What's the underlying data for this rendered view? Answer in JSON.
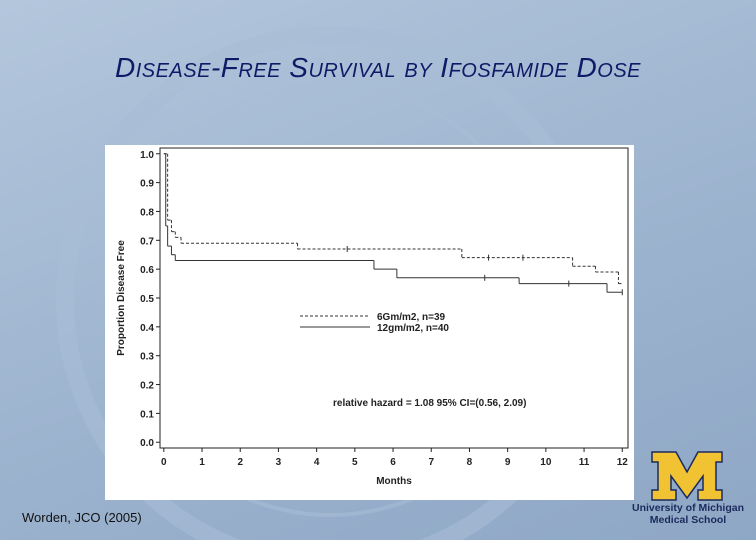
{
  "chart_data": {
    "type": "line",
    "step": true,
    "title": "Disease-Free Survival by Ifosfamide Dose",
    "x_label": "Months",
    "y_label": "Proportion Disease Free",
    "annotation": "relative hazard = 1.08 95% CI=(0.56, 2.09)",
    "xlim": [
      -0.1,
      12.15
    ],
    "ylim": [
      -0.02,
      1.02
    ],
    "xticks": [
      0,
      1,
      2,
      3,
      4,
      5,
      6,
      7,
      8,
      9,
      10,
      11,
      12
    ],
    "yticks": [
      {
        "value": 0,
        "label": "0.0"
      },
      {
        "value": 0.1,
        "label": "0.1"
      },
      {
        "value": 0.2,
        "label": "0.2"
      },
      {
        "value": 0.3,
        "label": "0.3"
      },
      {
        "value": 0.4,
        "label": "0.4"
      },
      {
        "value": 0.5,
        "label": "0.5"
      },
      {
        "value": 0.6,
        "label": "0.6"
      },
      {
        "value": 0.7,
        "label": "0.7"
      },
      {
        "value": 0.8,
        "label": "0.8"
      },
      {
        "value": 0.9,
        "label": "0.9"
      },
      {
        "value": 1,
        "label": "1.0"
      }
    ],
    "series": [
      {
        "name": "6Gm/m2, n=39",
        "color": "#333333",
        "line_style": "dashed",
        "x": [
          0,
          0.1,
          0.2,
          0.3,
          0.45,
          3.5,
          7.8,
          10.7,
          11.3,
          11.9
        ],
        "values": [
          1.0,
          0.77,
          0.73,
          0.71,
          0.69,
          0.67,
          0.64,
          0.61,
          0.59,
          0.55
        ],
        "censored_x": [
          4.8,
          8.5,
          9.4
        ]
      },
      {
        "name": "12gm/m2, n=40",
        "color": "#333333",
        "line_style": "solid",
        "x": [
          0,
          0.05,
          0.1,
          0.2,
          0.3,
          5.5,
          6.1,
          9.3,
          11.6
        ],
        "values": [
          1.0,
          0.75,
          0.68,
          0.65,
          0.63,
          0.6,
          0.57,
          0.55,
          0.52
        ],
        "censored_x": [
          8.4,
          10.6,
          12
        ]
      }
    ]
  },
  "footer": {
    "citation": "Worden, JCO (2005)",
    "logo_lines": [
      "University of Michigan",
      "Medical School"
    ]
  }
}
